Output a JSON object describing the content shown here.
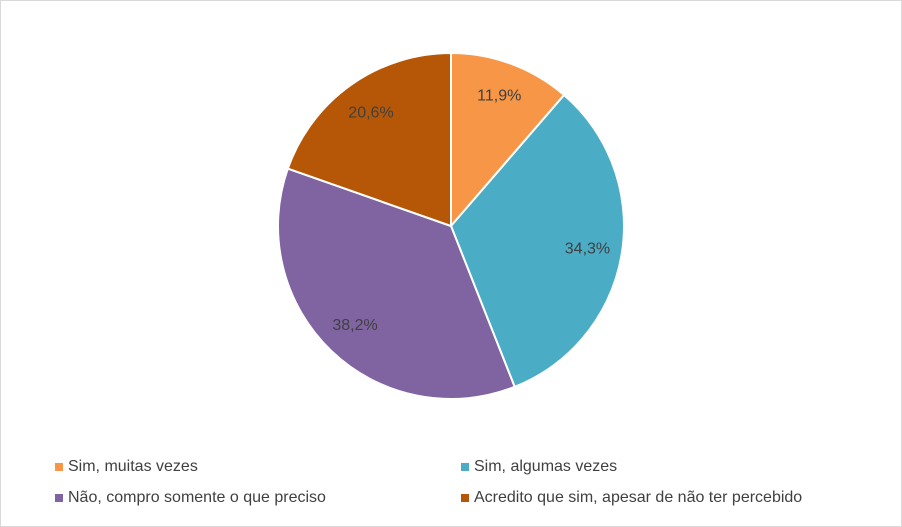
{
  "chart_data": {
    "type": "pie",
    "categories": [
      "Sim, muitas vezes",
      "Sim, algumas vezes",
      "Não, compro somente o que preciso",
      "Acredito que sim, apesar de não ter percebido"
    ],
    "values": [
      11.9,
      34.3,
      38.2,
      20.6
    ],
    "value_labels": [
      "11,9%",
      "34,3%",
      "38,2%",
      "20,6%"
    ],
    "colors": [
      "#f79646",
      "#4bacc6",
      "#8064a2",
      "#b65708"
    ],
    "legend": "bottom"
  }
}
